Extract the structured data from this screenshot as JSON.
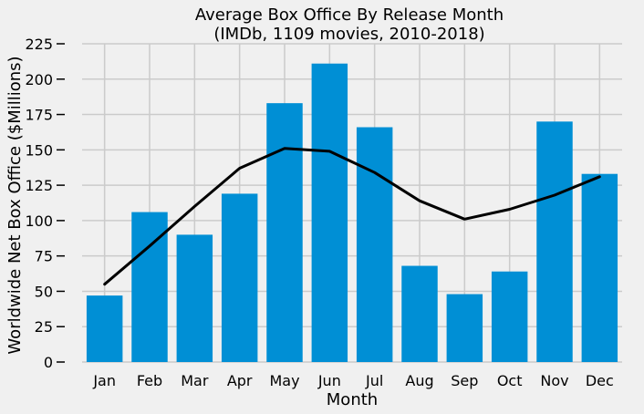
{
  "chart_data": {
    "type": "bar",
    "title_line1": "Average Box Office By Release Month",
    "title_line2": "(IMDb, 1109 movies, 2010-2018)",
    "xlabel": "Month",
    "ylabel": "Worldwide Net Box Office ($Millions)",
    "categories": [
      "Jan",
      "Feb",
      "Mar",
      "Apr",
      "May",
      "Jun",
      "Jul",
      "Aug",
      "Sep",
      "Oct",
      "Nov",
      "Dec"
    ],
    "values": [
      47,
      106,
      90,
      119,
      183,
      211,
      166,
      68,
      48,
      64,
      170,
      133
    ],
    "trend_values": [
      55,
      82,
      110,
      137,
      151,
      149,
      134,
      114,
      101,
      108,
      118,
      131
    ],
    "ylim": [
      0,
      225
    ],
    "yticks": [
      0,
      25,
      50,
      75,
      100,
      125,
      150,
      175,
      200,
      225
    ],
    "grid": true,
    "bar_color": "#008fd5",
    "line_color": "#000000",
    "background_color": "#f0f0f0",
    "grid_color": "#cbcbcb"
  }
}
